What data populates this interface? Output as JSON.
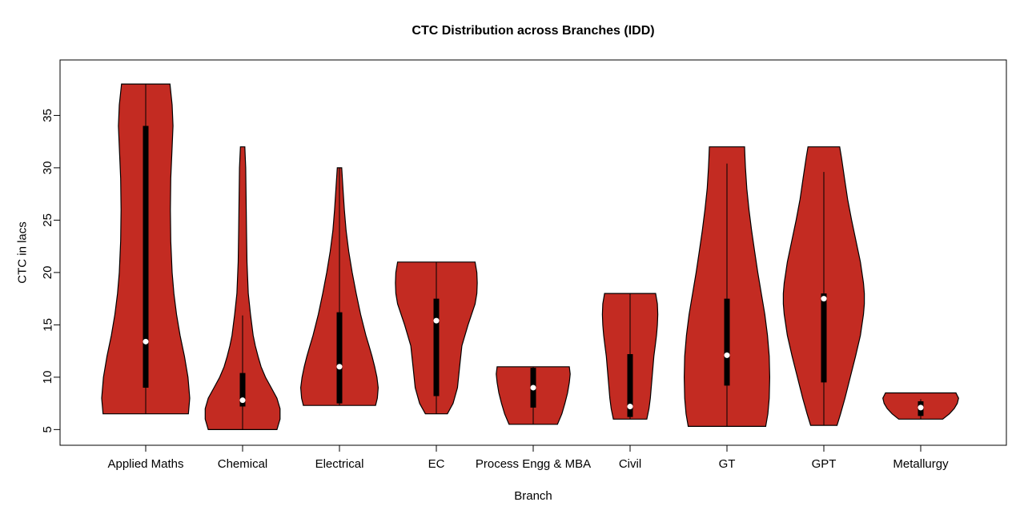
{
  "chart_data": {
    "type": "violin",
    "title": "CTC Distribution across Branches (IDD)",
    "xlabel": "Branch",
    "ylabel": "CTC in lacs",
    "ylim": [
      3.5,
      40.3
    ],
    "yticks": [
      5,
      10,
      15,
      20,
      25,
      30,
      35
    ],
    "categories": [
      "Applied Maths",
      "Chemical",
      "Electrical",
      "EC",
      "Process Engg & MBA",
      "Civil",
      "GT",
      "GPT",
      "Metallurgy"
    ],
    "fill_color": "#c32b22",
    "outline_color": "#000000",
    "background_color": "#ffffff",
    "legend": "none",
    "grid": false,
    "series": [
      {
        "name": "Applied Maths",
        "min": 6.5,
        "max": 38,
        "q1": 9,
        "q3": 34,
        "median": 13.4,
        "whisker_low": 6.5,
        "whisker_high": 38,
        "shape": [
          [
            6.5,
            0.97
          ],
          [
            8,
            1.0
          ],
          [
            10,
            0.96
          ],
          [
            12,
            0.88
          ],
          [
            14,
            0.78
          ],
          [
            16,
            0.7
          ],
          [
            18,
            0.64
          ],
          [
            20,
            0.6
          ],
          [
            23,
            0.57
          ],
          [
            26,
            0.56
          ],
          [
            29,
            0.57
          ],
          [
            32,
            0.6
          ],
          [
            34,
            0.62
          ],
          [
            36,
            0.6
          ],
          [
            38,
            0.55
          ]
        ]
      },
      {
        "name": "Chemical",
        "min": 5,
        "max": 32,
        "q1": 7.2,
        "q3": 10.4,
        "median": 7.8,
        "whisker_low": 5,
        "whisker_high": 15.9,
        "shape": [
          [
            5,
            0.78
          ],
          [
            6,
            0.85
          ],
          [
            7,
            0.85
          ],
          [
            8,
            0.78
          ],
          [
            9,
            0.65
          ],
          [
            10,
            0.52
          ],
          [
            11,
            0.42
          ],
          [
            12,
            0.35
          ],
          [
            13,
            0.29
          ],
          [
            14,
            0.24
          ],
          [
            16,
            0.18
          ],
          [
            18,
            0.13
          ],
          [
            21,
            0.1
          ],
          [
            24,
            0.09
          ],
          [
            27,
            0.08
          ],
          [
            30,
            0.07
          ],
          [
            32,
            0.05
          ]
        ]
      },
      {
        "name": "Electrical",
        "min": 7.3,
        "max": 30,
        "q1": 7.5,
        "q3": 16.2,
        "median": 11,
        "whisker_low": 7.3,
        "whisker_high": 30,
        "shape": [
          [
            7.3,
            0.82
          ],
          [
            8,
            0.86
          ],
          [
            9,
            0.88
          ],
          [
            10,
            0.85
          ],
          [
            11,
            0.8
          ],
          [
            12,
            0.74
          ],
          [
            13,
            0.67
          ],
          [
            14,
            0.6
          ],
          [
            15,
            0.54
          ],
          [
            16,
            0.48
          ],
          [
            18,
            0.38
          ],
          [
            20,
            0.29
          ],
          [
            22,
            0.21
          ],
          [
            24,
            0.15
          ],
          [
            26,
            0.11
          ],
          [
            28,
            0.08
          ],
          [
            30,
            0.05
          ]
        ]
      },
      {
        "name": "EC",
        "min": 6.5,
        "max": 21,
        "q1": 8.2,
        "q3": 17.5,
        "median": 15.4,
        "whisker_low": 6.5,
        "whisker_high": 21,
        "shape": [
          [
            6.5,
            0.25
          ],
          [
            7.5,
            0.38
          ],
          [
            9,
            0.48
          ],
          [
            11,
            0.53
          ],
          [
            13,
            0.58
          ],
          [
            15,
            0.72
          ],
          [
            17,
            0.88
          ],
          [
            18,
            0.92
          ],
          [
            19,
            0.93
          ],
          [
            20,
            0.92
          ],
          [
            21,
            0.88
          ]
        ]
      },
      {
        "name": "Process Engg & MBA",
        "min": 5.5,
        "max": 11,
        "q1": 7.1,
        "q3": 10.9,
        "median": 9,
        "whisker_low": 5.5,
        "whisker_high": 11,
        "shape": [
          [
            5.5,
            0.55
          ],
          [
            6.5,
            0.65
          ],
          [
            7.5,
            0.72
          ],
          [
            8.5,
            0.78
          ],
          [
            9.5,
            0.82
          ],
          [
            10.3,
            0.84
          ],
          [
            11,
            0.82
          ]
        ]
      },
      {
        "name": "Civil",
        "min": 6,
        "max": 18,
        "q1": 6.2,
        "q3": 12.2,
        "median": 7.2,
        "whisker_low": 6,
        "whisker_high": 18,
        "shape": [
          [
            6,
            0.38
          ],
          [
            7,
            0.43
          ],
          [
            8,
            0.46
          ],
          [
            9,
            0.48
          ],
          [
            10,
            0.5
          ],
          [
            11,
            0.52
          ],
          [
            12,
            0.54
          ],
          [
            13,
            0.57
          ],
          [
            14,
            0.6
          ],
          [
            15,
            0.62
          ],
          [
            16,
            0.63
          ],
          [
            17,
            0.62
          ],
          [
            18,
            0.58
          ]
        ]
      },
      {
        "name": "GT",
        "min": 5.3,
        "max": 32,
        "q1": 9.2,
        "q3": 17.5,
        "median": 12.1,
        "whisker_low": 5.3,
        "whisker_high": 30.4,
        "shape": [
          [
            5.3,
            0.88
          ],
          [
            6.5,
            0.93
          ],
          [
            8,
            0.96
          ],
          [
            10,
            0.97
          ],
          [
            12,
            0.96
          ],
          [
            14,
            0.92
          ],
          [
            16,
            0.86
          ],
          [
            18,
            0.78
          ],
          [
            20,
            0.7
          ],
          [
            22,
            0.63
          ],
          [
            24,
            0.56
          ],
          [
            26,
            0.5
          ],
          [
            28,
            0.45
          ],
          [
            30,
            0.42
          ],
          [
            31,
            0.41
          ],
          [
            32,
            0.4
          ]
        ]
      },
      {
        "name": "GPT",
        "min": 5.4,
        "max": 32,
        "q1": 9.5,
        "q3": 18,
        "median": 17.5,
        "whisker_low": 5.4,
        "whisker_high": 29.6,
        "shape": [
          [
            5.4,
            0.3
          ],
          [
            6.5,
            0.38
          ],
          [
            8,
            0.48
          ],
          [
            10,
            0.6
          ],
          [
            12,
            0.72
          ],
          [
            14,
            0.83
          ],
          [
            16,
            0.9
          ],
          [
            17,
            0.92
          ],
          [
            18,
            0.92
          ],
          [
            19,
            0.9
          ],
          [
            21,
            0.83
          ],
          [
            23,
            0.73
          ],
          [
            25,
            0.63
          ],
          [
            27,
            0.54
          ],
          [
            29,
            0.47
          ],
          [
            31,
            0.4
          ],
          [
            32,
            0.36
          ]
        ]
      },
      {
        "name": "Metallurgy",
        "min": 6,
        "max": 8.5,
        "q1": 6.3,
        "q3": 7.7,
        "median": 7.1,
        "whisker_low": 6,
        "whisker_high": 7.9,
        "shape": [
          [
            6,
            0.5
          ],
          [
            6.5,
            0.65
          ],
          [
            7,
            0.76
          ],
          [
            7.5,
            0.83
          ],
          [
            8,
            0.86
          ],
          [
            8.5,
            0.8
          ]
        ]
      }
    ]
  }
}
